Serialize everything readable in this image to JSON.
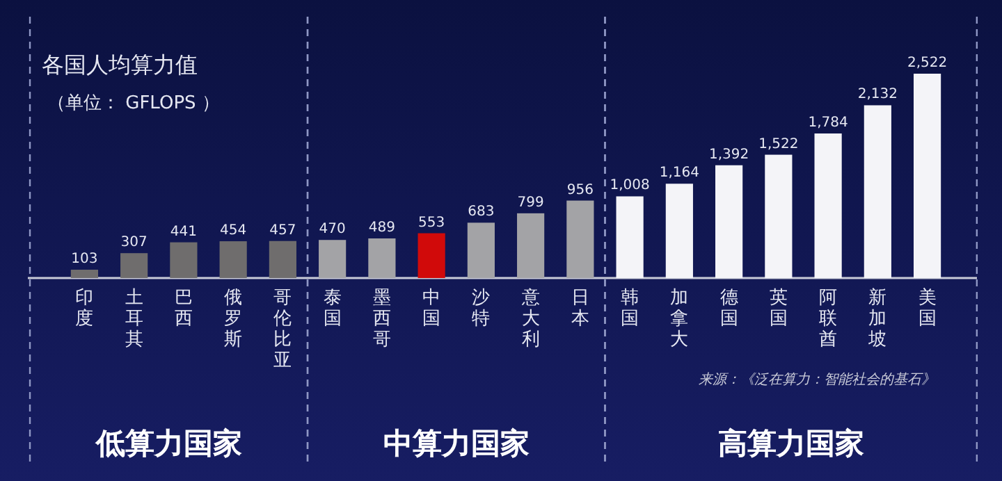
{
  "chart_data": {
    "type": "bar",
    "title": "各国人均算力值",
    "subtitle": "（单位： GFLOPS ）",
    "categories": [
      "印度",
      "土耳其",
      "巴西",
      "俄罗斯",
      "哥伦比亚",
      "泰国",
      "墨西哥",
      "中国",
      "沙特",
      "意大利",
      "日本",
      "韩国",
      "加拿大",
      "德国",
      "英国",
      "阿联酋",
      "新加坡",
      "美国"
    ],
    "values": [
      103,
      307,
      441,
      454,
      457,
      470,
      489,
      553,
      683,
      799,
      956,
      1008,
      1164,
      1392,
      1522,
      1784,
      2132,
      2522
    ],
    "value_labels": [
      "103",
      "307",
      "441",
      "454",
      "457",
      "470",
      "489",
      "553",
      "683",
      "799",
      "956",
      "1,008",
      "1,164",
      "1,392",
      "1,522",
      "1,784",
      "2,132",
      "2,522"
    ],
    "colors": [
      "#6f6d6d",
      "#6f6d6d",
      "#6f6d6d",
      "#6f6d6d",
      "#6f6d6d",
      "#a3a3a6",
      "#a3a3a6",
      "#d10a0a",
      "#a3a3a6",
      "#a3a3a6",
      "#a3a3a6",
      "#f4f4f8",
      "#f4f4f8",
      "#f4f4f8",
      "#f4f4f8",
      "#f4f4f8",
      "#f4f4f8",
      "#f4f4f8"
    ],
    "annotations": [
      "低算力国家",
      "中算力国家",
      "高算力国家",
      "来源：《泛在算力：智能社会的基石》"
    ]
  }
}
